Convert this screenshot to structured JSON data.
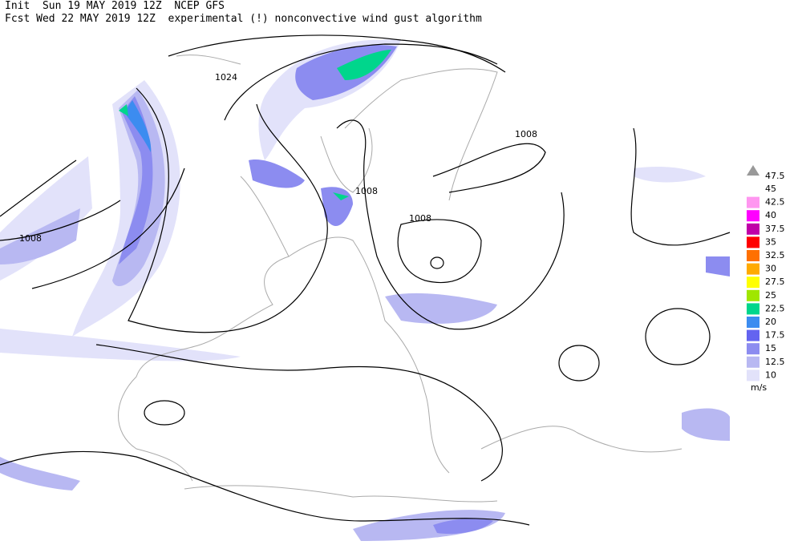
{
  "header": {
    "line1": "Init  Sun 19 MAY 2019 12Z  NCEP GFS",
    "line2": "Fcst Wed 22 MAY 2019 12Z  experimental (!) nonconvective wind gust algorithm"
  },
  "contour_labels": [
    "1024",
    "1008",
    "1008",
    "1008",
    "1008"
  ],
  "legend": {
    "top_label": "47.5",
    "items": [
      {
        "label": "45",
        "color": "#ffffff"
      },
      {
        "label": "42.5",
        "color": "#ff96f0"
      },
      {
        "label": "40",
        "color": "#ff00ff"
      },
      {
        "label": "37.5",
        "color": "#c000a8"
      },
      {
        "label": "35",
        "color": "#ff0000"
      },
      {
        "label": "32.5",
        "color": "#ff7000"
      },
      {
        "label": "30",
        "color": "#ffaa00"
      },
      {
        "label": "27.5",
        "color": "#ffff00"
      },
      {
        "label": "25",
        "color": "#a0e600"
      },
      {
        "label": "22.5",
        "color": "#00d68c"
      },
      {
        "label": "20",
        "color": "#3c8cf0"
      },
      {
        "label": "17.5",
        "color": "#6464f0"
      },
      {
        "label": "15",
        "color": "#8c8cf0"
      },
      {
        "label": "12.5",
        "color": "#b8b8f2"
      },
      {
        "label": "10",
        "color": "#e2e2fa"
      }
    ],
    "unit": "m/s"
  }
}
